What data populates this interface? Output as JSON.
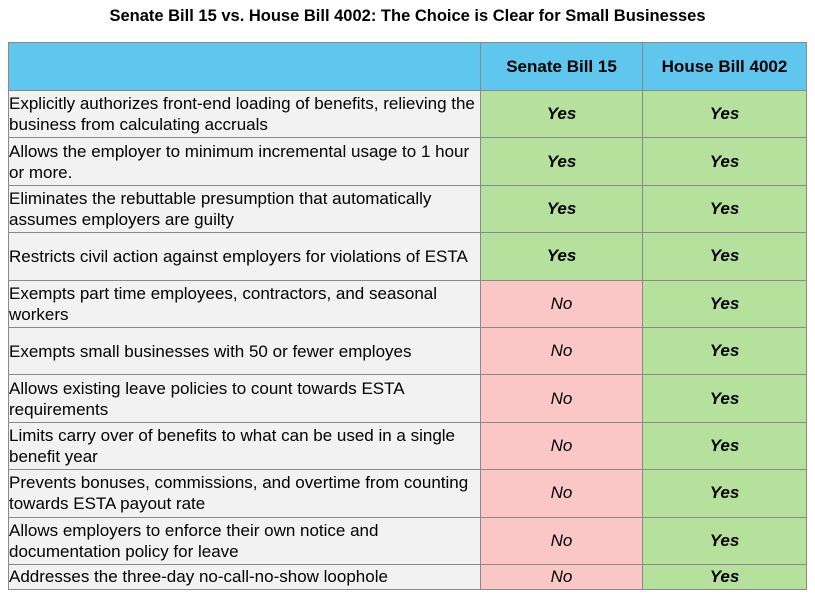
{
  "title": "Senate Bill 15 vs. House Bill 4002: The Choice is Clear for Small Businesses",
  "columns": [
    "",
    "Senate Bill 15",
    "House Bill 4002"
  ],
  "colors": {
    "header": "#5fc6ee",
    "criterion_bg": "#f2f2f2",
    "yes_bg": "#b5e19d",
    "no_bg": "#fbc7c6"
  },
  "rows": [
    {
      "criterion": "Explicitly authorizes front-end loading of benefits, relieving the business from calculating accruals",
      "sb15": "Yes",
      "hb4002": "Yes"
    },
    {
      "criterion": "Allows the employer to minimum incremental usage to 1 hour or more.",
      "sb15": "Yes",
      "hb4002": "Yes"
    },
    {
      "criterion": "Eliminates the rebuttable presumption that automatically assumes employers are guilty",
      "sb15": "Yes",
      "hb4002": "Yes"
    },
    {
      "criterion": "Restricts civil action against employers for violations of ESTA",
      "sb15": "Yes",
      "hb4002": "Yes"
    },
    {
      "criterion": "Exempts part time employees, contractors, and seasonal workers",
      "sb15": "No",
      "hb4002": "Yes"
    },
    {
      "criterion": "Exempts small businesses with 50 or fewer employes",
      "sb15": "No",
      "hb4002": "Yes"
    },
    {
      "criterion": "Allows existing leave policies to count towards ESTA requirements",
      "sb15": "No",
      "hb4002": "Yes"
    },
    {
      "criterion": "Limits carry over of benefits to what can be used in a single benefit year",
      "sb15": "No",
      "hb4002": "Yes"
    },
    {
      "criterion": "Prevents bonuses, commissions, and overtime from counting towards ESTA payout rate",
      "sb15": "No",
      "hb4002": "Yes"
    },
    {
      "criterion": "Allows employers to enforce their own notice and documentation policy for leave",
      "sb15": "No",
      "hb4002": "Yes"
    },
    {
      "criterion": "Addresses the three-day no-call-no-show loophole",
      "sb15": "No",
      "hb4002": "Yes"
    }
  ]
}
